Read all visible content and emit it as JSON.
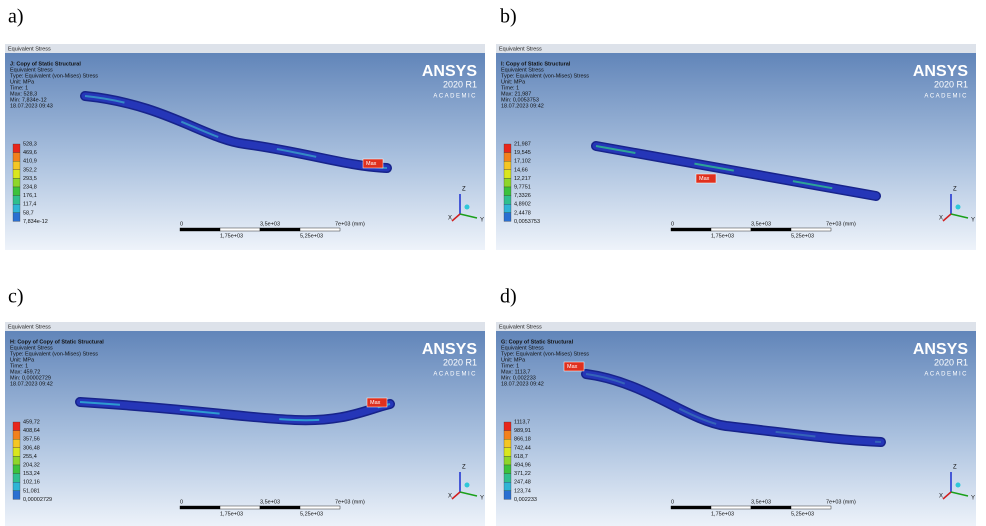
{
  "common": {
    "header": "Equivalent Stress",
    "logo": {
      "name": "ANSYS",
      "version": "2020 R1",
      "edition": "ACADEMIC"
    },
    "scale": {
      "top": [
        "0",
        "3,5e+03",
        "7e+03 (mm)"
      ],
      "bottom": [
        "1,75e+03",
        "5,25e+03"
      ]
    },
    "triad": [
      "Z",
      "X",
      "Y"
    ],
    "max_tag": "Max",
    "legend_colors": [
      "#e8261c",
      "#f2811d",
      "#f5c623",
      "#d9e61e",
      "#8fd62a",
      "#3cc23c",
      "#2fbf8e",
      "#2fb4d6",
      "#2a6fd1"
    ]
  },
  "panels": [
    {
      "label": "a)",
      "title": "J: Copy of Static Structural",
      "info": [
        "Equivalent Stress",
        "Type: Equivalent (von-Mises) Stress",
        "Unit: MPa",
        "Time: 1",
        "Max: 528,3",
        "Min: 7,834e-12",
        "18.07.2023 09:43"
      ],
      "legend": [
        "528,3",
        "469,6",
        "410,9",
        "352,2",
        "293,5",
        "234,8",
        "176,1",
        "117,4",
        "58,7",
        "7,834e-12"
      ]
    },
    {
      "label": "b)",
      "title": "I: Copy of Static Structural",
      "info": [
        "Equivalent Stress",
        "Type: Equivalent (von-Mises) Stress",
        "Unit: MPa",
        "Time: 1",
        "Max: 21,987",
        "Min: 0,0053753",
        "18.07.2023 09:42"
      ],
      "legend": [
        "21,987",
        "19,545",
        "17,102",
        "14,66",
        "12,217",
        "9,7751",
        "7,3326",
        "4,8902",
        "2,4478",
        "0,0053753"
      ]
    },
    {
      "label": "c)",
      "title": "H: Copy of Copy of Static Structural",
      "info": [
        "Equivalent Stress",
        "Type: Equivalent (von-Mises) Stress",
        "Unit: MPa",
        "Time: 1",
        "Max: 459,72",
        "Min: 0,00002729",
        "18.07.2023 09:42"
      ],
      "legend": [
        "459,72",
        "408,64",
        "357,56",
        "306,48",
        "255,4",
        "204,32",
        "153,24",
        "102,16",
        "51,081",
        "0,00002729"
      ]
    },
    {
      "label": "d)",
      "title": "G: Copy of Static Structural",
      "info": [
        "Equivalent Stress",
        "Type: Equivalent (von-Mises) Stress",
        "Unit: MPa",
        "Time: 1",
        "Max: 1113,7",
        "Min: 0,002233",
        "18.07.2023 09:42"
      ],
      "legend": [
        "1113,7",
        "989,91",
        "866,18",
        "742,44",
        "618,7",
        "494,96",
        "371,22",
        "247,48",
        "123,74",
        "0,002233"
      ]
    }
  ]
}
